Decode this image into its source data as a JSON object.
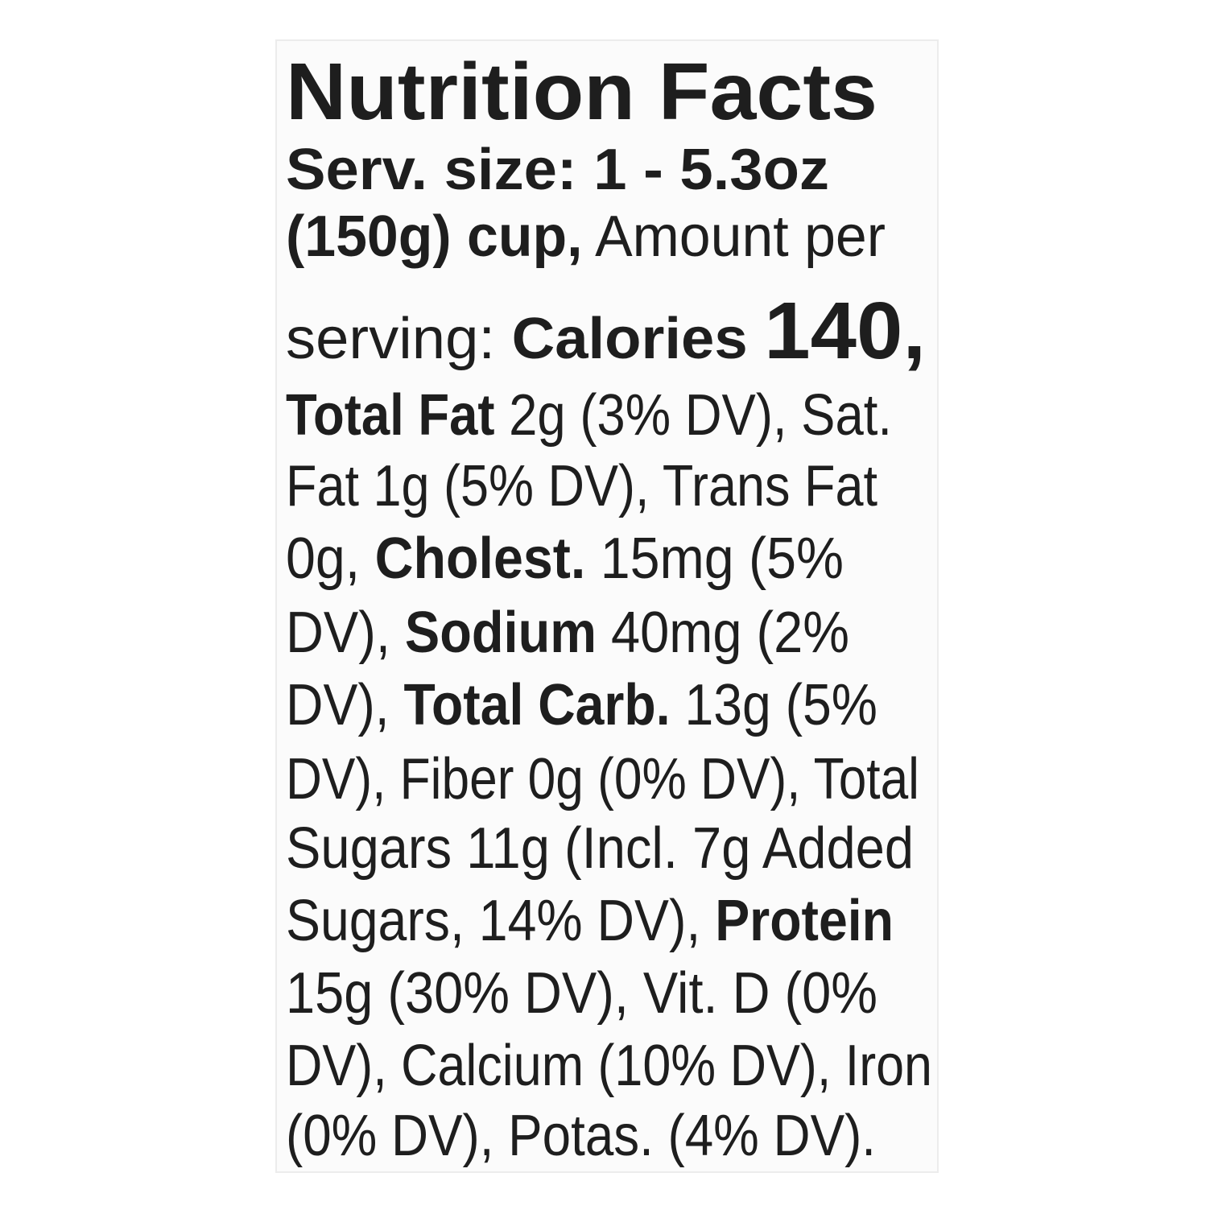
{
  "label": {
    "title": "Nutrition Facts",
    "lines": [
      [
        {
          "text": "Serv. size: 1 - 5.3oz",
          "style": "bold"
        }
      ],
      [
        {
          "text": "(150g) cup,",
          "style": "bold"
        },
        {
          "text": " Amount per",
          "style": "regular"
        }
      ],
      [
        {
          "text": "serving: ",
          "style": "regular"
        },
        {
          "text": "Calories ",
          "style": "bold"
        },
        {
          "text": "140,",
          "style": "bold-large"
        }
      ],
      [
        {
          "text": "Total Fat",
          "style": "bold"
        },
        {
          "text": " 2g (3% DV), Sat.",
          "style": "regular"
        }
      ],
      [
        {
          "text": "Fat 1g (5% DV), Trans Fat",
          "style": "regular"
        }
      ],
      [
        {
          "text": "0g, ",
          "style": "regular"
        },
        {
          "text": "Cholest.",
          "style": "bold"
        },
        {
          "text": " 15mg (5%",
          "style": "regular"
        }
      ],
      [
        {
          "text": "DV), ",
          "style": "regular"
        },
        {
          "text": "Sodium",
          "style": "bold"
        },
        {
          "text": " 40mg (2%",
          "style": "regular"
        }
      ],
      [
        {
          "text": "DV), ",
          "style": "regular"
        },
        {
          "text": "Total Carb.",
          "style": "bold"
        },
        {
          "text": " 13g (5%",
          "style": "regular"
        }
      ],
      [
        {
          "text": "DV), Fiber 0g (0% DV), Total",
          "style": "regular"
        }
      ],
      [
        {
          "text": "Sugars 11g (Incl. 7g Added",
          "style": "regular"
        }
      ],
      [
        {
          "text": "Sugars, 14% DV), ",
          "style": "regular"
        },
        {
          "text": "Protein",
          "style": "bold"
        }
      ],
      [
        {
          "text": "15g (30% DV), Vit. D (0%",
          "style": "regular"
        }
      ],
      [
        {
          "text": "DV), Calcium (10% DV), Iron",
          "style": "regular"
        }
      ],
      [
        {
          "text": "(0% DV), Potas. (4% DV).",
          "style": "regular"
        }
      ]
    ]
  }
}
